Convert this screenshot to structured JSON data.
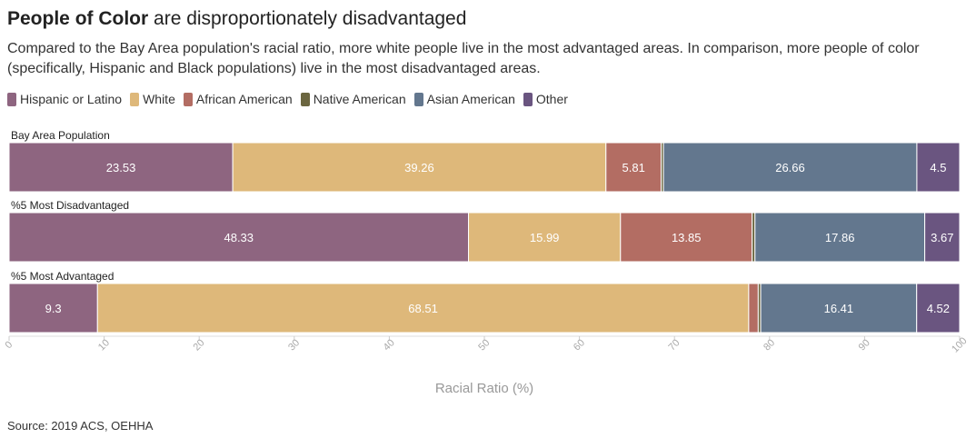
{
  "title_strong": "People of Color",
  "title_rest": " are disproportionately disadvantaged",
  "subtitle": "Compared to the Bay Area population's racial ratio, more white people live in the most advantaged areas. In comparison, more people of color (specifically, Hispanic and Black populations) live in the most disadvantaged areas.",
  "source": "Source: 2019 ACS, OEHHA",
  "chart_data": {
    "type": "bar",
    "orientation": "horizontal",
    "stacked": true,
    "categories": [
      "Bay Area Population",
      "%5 Most Disadvantaged",
      "%5 Most Advantaged"
    ],
    "series": [
      {
        "name": "Hispanic or Latino",
        "color": "#8E6580",
        "values": [
          23.53,
          48.33,
          9.3
        ],
        "labels": [
          "23.53",
          "48.33",
          "9.3"
        ]
      },
      {
        "name": "White",
        "color": "#DEB87A",
        "values": [
          39.26,
          15.99,
          68.51
        ],
        "labels": [
          "39.26",
          "15.99",
          "68.51"
        ]
      },
      {
        "name": "African American",
        "color": "#B36D63",
        "values": [
          5.81,
          13.85,
          1.0
        ],
        "labels": [
          "5.81",
          "13.85",
          ""
        ]
      },
      {
        "name": "Native American",
        "color": "#6B6640",
        "values": [
          0.24,
          0.3,
          0.26
        ],
        "labels": [
          "",
          "",
          ""
        ]
      },
      {
        "name": "Asian American",
        "color": "#63778E",
        "values": [
          26.66,
          17.86,
          16.41
        ],
        "labels": [
          "26.66",
          "17.86",
          "16.41"
        ]
      },
      {
        "name": "Other",
        "color": "#6A5580",
        "values": [
          4.5,
          3.67,
          4.52
        ],
        "labels": [
          "4.5",
          "3.67",
          "4.52"
        ]
      }
    ],
    "xlabel": "Racial Ratio (%)",
    "xlim": [
      0,
      100
    ],
    "xticks": [
      0,
      10,
      20,
      30,
      40,
      50,
      60,
      70,
      80,
      90,
      100
    ],
    "legend_position": "top-left",
    "grid": false
  }
}
